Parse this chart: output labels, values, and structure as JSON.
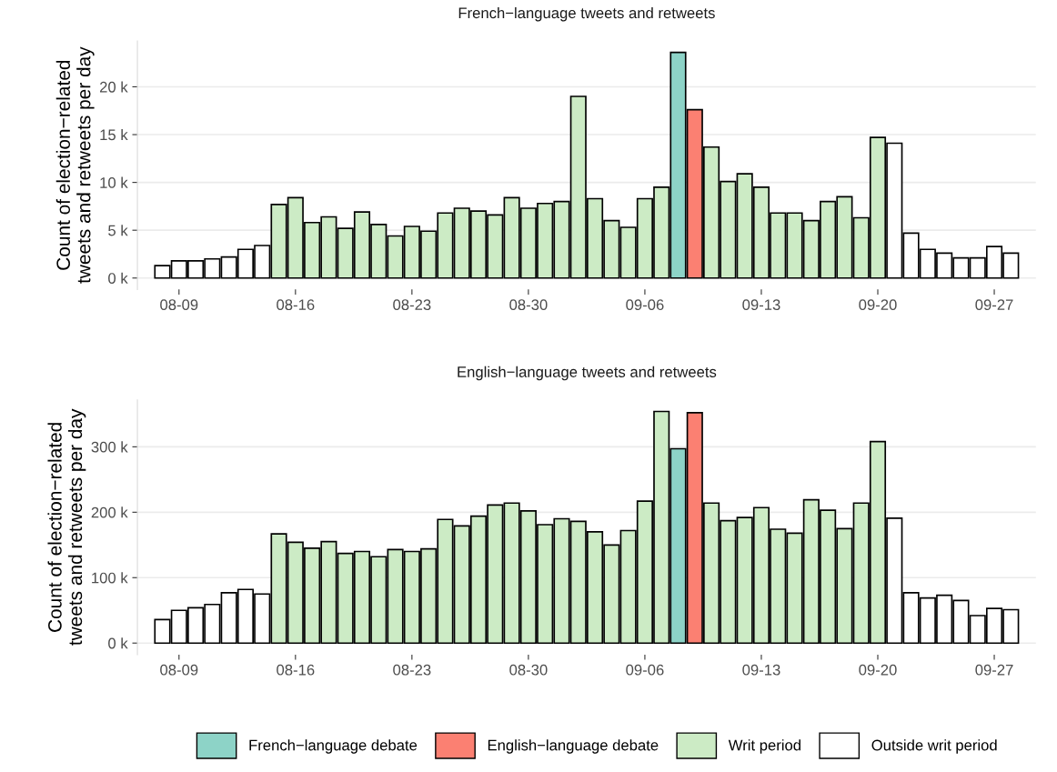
{
  "chart_data": [
    {
      "type": "bar",
      "title": "French−language tweets and retweets",
      "ylabel": "Count of election−related\ntweets and retweets per day",
      "categories": [
        null,
        "08-09",
        null,
        null,
        null,
        null,
        null,
        null,
        "08-16",
        null,
        null,
        null,
        null,
        null,
        null,
        "08-23",
        null,
        null,
        null,
        null,
        null,
        null,
        "08-30",
        null,
        null,
        null,
        null,
        null,
        null,
        "09-06",
        null,
        null,
        null,
        null,
        null,
        null,
        "09-13",
        null,
        null,
        null,
        null,
        null,
        null,
        "09-20",
        null,
        null,
        null,
        null,
        null,
        null,
        "09-27",
        null
      ],
      "series": [
        {
          "color": "#8dd3c7",
          "values": [
            null,
            null,
            null,
            null,
            null,
            null,
            null,
            null,
            null,
            null,
            null,
            null,
            null,
            null,
            null,
            null,
            null,
            null,
            null,
            null,
            null,
            null,
            null,
            null,
            null,
            null,
            null,
            null,
            null,
            null,
            null,
            23.6,
            null,
            null,
            null,
            null,
            null,
            null,
            null,
            null,
            null,
            null,
            null,
            null,
            null,
            null,
            null,
            null,
            null,
            null,
            null,
            null
          ]
        },
        {
          "color": "#fb8072",
          "values": [
            null,
            null,
            null,
            null,
            null,
            null,
            null,
            null,
            null,
            null,
            null,
            null,
            null,
            null,
            null,
            null,
            null,
            null,
            null,
            null,
            null,
            null,
            null,
            null,
            null,
            null,
            null,
            null,
            null,
            null,
            null,
            null,
            17.6,
            null,
            null,
            null,
            null,
            null,
            null,
            null,
            null,
            null,
            null,
            null,
            null,
            null,
            null,
            null,
            null,
            null,
            null,
            null
          ]
        },
        {
          "color": "#ccebc5",
          "values": [
            null,
            null,
            null,
            null,
            null,
            null,
            null,
            7.7,
            8.4,
            5.8,
            6.4,
            5.2,
            6.9,
            5.6,
            4.4,
            5.4,
            4.9,
            6.8,
            7.3,
            7.0,
            6.6,
            8.4,
            7.3,
            7.8,
            8.0,
            19.0,
            8.3,
            6.0,
            5.3,
            8.3,
            9.5,
            null,
            null,
            13.7,
            10.1,
            10.9,
            9.5,
            6.8,
            6.8,
            6.0,
            8.0,
            8.5,
            6.3,
            14.7,
            null,
            null,
            null,
            null,
            null,
            null,
            null,
            null
          ]
        },
        {
          "color": "#ffffff",
          "values": [
            1.3,
            1.8,
            1.8,
            2.0,
            2.2,
            3.0,
            3.4,
            null,
            null,
            null,
            null,
            null,
            null,
            null,
            null,
            null,
            null,
            null,
            null,
            null,
            null,
            null,
            null,
            null,
            null,
            null,
            null,
            null,
            null,
            null,
            null,
            null,
            null,
            null,
            null,
            null,
            null,
            null,
            null,
            null,
            null,
            null,
            null,
            null,
            14.1,
            4.7,
            3.0,
            2.6,
            2.1,
            2.1,
            3.3,
            2.6
          ]
        }
      ],
      "ylim": [
        -1.2,
        24.8
      ],
      "yticks": [
        {
          "value": 0,
          "label": "0 k"
        },
        {
          "value": 5,
          "label": "5 k"
        },
        {
          "value": 10,
          "label": "10 k"
        },
        {
          "value": 15,
          "label": "15 k"
        },
        {
          "value": 20,
          "label": "20 k"
        }
      ],
      "grid": "y"
    },
    {
      "type": "bar",
      "title": "English−language tweets and retweets",
      "ylabel": "Count of election−related\ntweets and retweets per day",
      "categories": [
        null,
        "08-09",
        null,
        null,
        null,
        null,
        null,
        null,
        "08-16",
        null,
        null,
        null,
        null,
        null,
        null,
        "08-23",
        null,
        null,
        null,
        null,
        null,
        null,
        "08-30",
        null,
        null,
        null,
        null,
        null,
        null,
        "09-06",
        null,
        null,
        null,
        null,
        null,
        null,
        "09-13",
        null,
        null,
        null,
        null,
        null,
        null,
        "09-20",
        null,
        null,
        null,
        null,
        null,
        null,
        "09-27",
        null
      ],
      "series": [
        {
          "name": "French−language debate",
          "color": "#8dd3c7",
          "values": [
            null,
            null,
            null,
            null,
            null,
            null,
            null,
            null,
            null,
            null,
            null,
            null,
            null,
            null,
            null,
            null,
            null,
            null,
            null,
            null,
            null,
            null,
            null,
            null,
            null,
            null,
            null,
            null,
            null,
            null,
            null,
            297,
            null,
            null,
            null,
            null,
            null,
            null,
            null,
            null,
            null,
            null,
            null,
            null,
            null,
            null,
            null,
            null,
            null,
            null,
            null,
            null
          ]
        },
        {
          "name": "English−language debate",
          "color": "#fb8072",
          "values": [
            null,
            null,
            null,
            null,
            null,
            null,
            null,
            null,
            null,
            null,
            null,
            null,
            null,
            null,
            null,
            null,
            null,
            null,
            null,
            null,
            null,
            null,
            null,
            null,
            null,
            null,
            null,
            null,
            null,
            null,
            null,
            null,
            352,
            null,
            null,
            null,
            null,
            null,
            null,
            null,
            null,
            null,
            null,
            null,
            null,
            null,
            null,
            null,
            null,
            null,
            null,
            null
          ]
        },
        {
          "name": "Writ period",
          "color": "#ccebc5",
          "values": [
            null,
            null,
            null,
            null,
            null,
            null,
            null,
            167,
            154,
            145,
            155,
            137,
            140,
            132,
            143,
            140,
            144,
            189,
            179,
            194,
            211,
            214,
            202,
            181,
            190,
            186,
            170,
            150,
            172,
            217,
            354,
            null,
            null,
            214,
            187,
            192,
            207,
            174,
            168,
            219,
            203,
            175,
            214,
            308,
            null,
            null,
            null,
            null,
            null,
            null,
            null,
            null
          ]
        },
        {
          "name": "Outside writ period",
          "color": "#ffffff",
          "values": [
            36,
            50,
            54,
            59,
            77,
            82,
            75,
            null,
            null,
            null,
            null,
            null,
            null,
            null,
            null,
            null,
            null,
            null,
            null,
            null,
            null,
            null,
            null,
            null,
            null,
            null,
            null,
            null,
            null,
            null,
            null,
            null,
            null,
            null,
            null,
            null,
            null,
            null,
            null,
            null,
            null,
            null,
            null,
            null,
            191,
            77,
            69,
            73,
            65,
            42,
            53,
            51
          ]
        }
      ],
      "ylim": [
        -17.7,
        371.7
      ],
      "yticks": [
        {
          "value": 0,
          "label": "0 k"
        },
        {
          "value": 100,
          "label": "100 k"
        },
        {
          "value": 200,
          "label": "200 k"
        },
        {
          "value": 300,
          "label": "300 k"
        }
      ],
      "grid": "y",
      "legend": "bottom"
    }
  ]
}
